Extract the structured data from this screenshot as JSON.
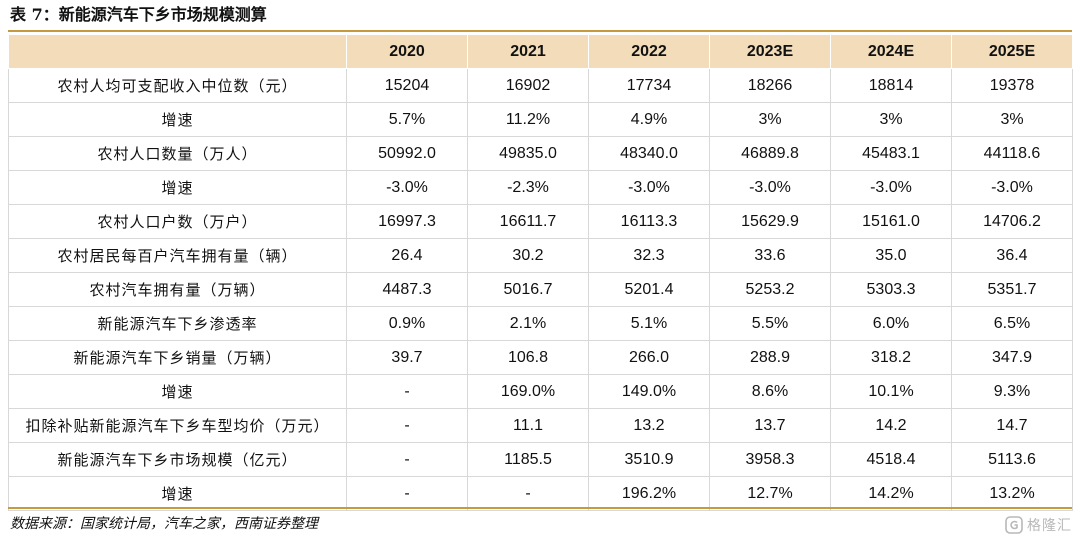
{
  "caption": "表 7：新能源汽车下乡市场规模测算",
  "table": {
    "headers": [
      "",
      "2020",
      "2021",
      "2022",
      "2023E",
      "2024E",
      "2025E"
    ],
    "rows": [
      {
        "label": "农村人均可支配收入中位数（元）",
        "values": [
          "15204",
          "16902",
          "17734",
          "18266",
          "18814",
          "19378"
        ]
      },
      {
        "label": "增速",
        "values": [
          "5.7%",
          "11.2%",
          "4.9%",
          "3%",
          "3%",
          "3%"
        ]
      },
      {
        "label": "农村人口数量（万人）",
        "values": [
          "50992.0",
          "49835.0",
          "48340.0",
          "46889.8",
          "45483.1",
          "44118.6"
        ]
      },
      {
        "label": "增速",
        "values": [
          "-3.0%",
          "-2.3%",
          "-3.0%",
          "-3.0%",
          "-3.0%",
          "-3.0%"
        ]
      },
      {
        "label": "农村人口户数（万户）",
        "values": [
          "16997.3",
          "16611.7",
          "16113.3",
          "15629.9",
          "15161.0",
          "14706.2"
        ]
      },
      {
        "label": "农村居民每百户汽车拥有量（辆）",
        "values": [
          "26.4",
          "30.2",
          "32.3",
          "33.6",
          "35.0",
          "36.4"
        ]
      },
      {
        "label": "农村汽车拥有量（万辆）",
        "values": [
          "4487.3",
          "5016.7",
          "5201.4",
          "5253.2",
          "5303.3",
          "5351.7"
        ]
      },
      {
        "label": "新能源汽车下乡渗透率",
        "values": [
          "0.9%",
          "2.1%",
          "5.1%",
          "5.5%",
          "6.0%",
          "6.5%"
        ]
      },
      {
        "label": "新能源汽车下乡销量（万辆）",
        "values": [
          "39.7",
          "106.8",
          "266.0",
          "288.9",
          "318.2",
          "347.9"
        ]
      },
      {
        "label": "增速",
        "values": [
          "-",
          "169.0%",
          "149.0%",
          "8.6%",
          "10.1%",
          "9.3%"
        ]
      },
      {
        "label": "扣除补贴新能源汽车下乡车型均价（万元）",
        "values": [
          "-",
          "11.1",
          "13.2",
          "13.7",
          "14.2",
          "14.7"
        ]
      },
      {
        "label": "新能源汽车下乡市场规模（亿元）",
        "values": [
          "-",
          "1185.5",
          "3510.9",
          "3958.3",
          "4518.4",
          "5113.6"
        ]
      },
      {
        "label": "增速",
        "values": [
          "-",
          "-",
          "196.2%",
          "12.7%",
          "14.2%",
          "13.2%"
        ]
      }
    ]
  },
  "source": "数据来源：国家统计局，汽车之家，西南证券整理",
  "watermark": {
    "text": "格隆汇",
    "icon": "gelonghui-logo-icon"
  },
  "colors": {
    "header_bg": "#f3dcb9",
    "rule": "#c69a3f",
    "watermark": "#b8b8b8"
  }
}
